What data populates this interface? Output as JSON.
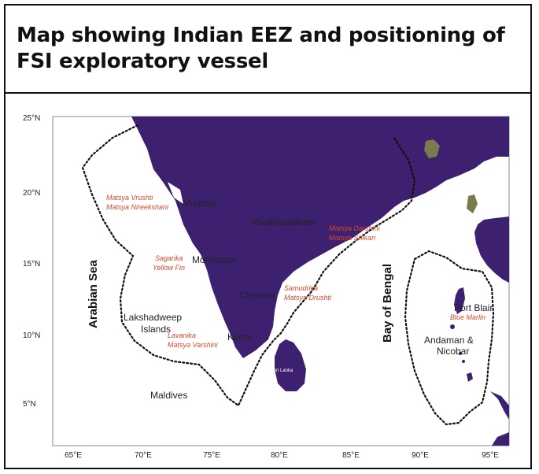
{
  "title": "Map showing Indian EEZ and positioning of FSI exploratory vessel",
  "colors": {
    "land": "#3d2170",
    "vessel_label": "#d9472b",
    "place_label": "#222222",
    "eez_line": "#111111",
    "tick_label": "#222222"
  },
  "axes": {
    "latitude_ticks": [
      "25°N",
      "20°N",
      "15°N",
      "10°N",
      "5°N"
    ],
    "longitude_ticks": [
      "65°E",
      "70°E",
      "75°E",
      "80°E",
      "85°E",
      "90°E",
      "95°E"
    ]
  },
  "seas": {
    "arabian": "Arabian Sea",
    "bengal": "Bay of Bengal"
  },
  "places": {
    "mumbai": "Mumbai",
    "visakhapatnam": "Visakhapatnam",
    "mormugao": "Mormugao",
    "chennai": "Chennai",
    "kochi": "Kochi",
    "lakshadweep_1": "Lakshadweep",
    "lakshadweep_2": "Islands",
    "maldives": "Maldives",
    "sri_lanka": "Sri Lanka",
    "port_blair": "Port Blair",
    "andaman_1": "Andaman &",
    "andaman_2": "Nicobar"
  },
  "vessels": {
    "matsya_vrushti": "Matsya Vrushti",
    "matsya_nireekshani": "Matsya Nireekshani",
    "matsya_darshini": "Matsya Darshini",
    "matsya_shikari": "Matsya Shikari",
    "sagarika": "Sagarika",
    "yellow_fin": "Yellow Fin",
    "samudrika": "Samudrika",
    "matsya_drushti": "Matsya Drushti",
    "lavanika": "Lavanika",
    "matsya_varshini": "Matsya Varshini",
    "blue_marlin": "Blue Marlin"
  }
}
